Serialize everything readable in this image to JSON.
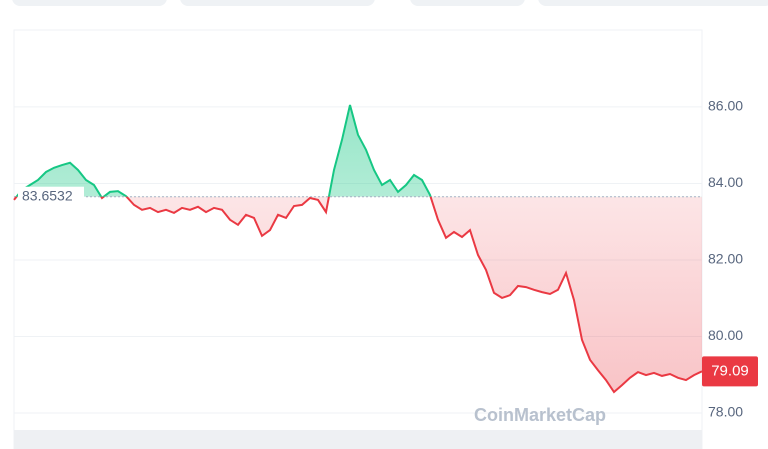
{
  "chart_data": {
    "type": "line",
    "watermark": "CoinMarketCap",
    "baseline": 83.6532,
    "color_above": "#16c784",
    "color_below": "#ea3943",
    "values": [
      83.57,
      83.83,
      83.96,
      84.09,
      84.3,
      84.41,
      84.48,
      84.54,
      84.35,
      84.09,
      83.96,
      83.62,
      83.78,
      83.8,
      83.67,
      83.44,
      83.31,
      83.36,
      83.25,
      83.31,
      83.23,
      83.36,
      83.31,
      83.39,
      83.25,
      83.36,
      83.31,
      83.05,
      82.92,
      83.18,
      83.1,
      82.63,
      82.78,
      83.18,
      83.1,
      83.41,
      83.44,
      83.62,
      83.57,
      83.25,
      84.35,
      85.14,
      86.05,
      85.27,
      84.88,
      84.35,
      83.96,
      84.09,
      83.78,
      83.96,
      84.22,
      84.09,
      83.7,
      83.05,
      82.58,
      82.73,
      82.6,
      82.78,
      82.13,
      81.74,
      81.14,
      81.01,
      81.08,
      81.32,
      81.29,
      81.22,
      81.16,
      81.11,
      81.22,
      81.66,
      80.95,
      79.91,
      79.39,
      79.12,
      78.86,
      78.55,
      78.73,
      78.92,
      79.07,
      78.99,
      79.05,
      78.97,
      79.02,
      78.92,
      78.86,
      78.99,
      79.09
    ],
    "ylim": [
      77.06,
      88.01
    ],
    "yticks": [
      {
        "value": 78,
        "label": "78.00"
      },
      {
        "value": 80,
        "label": "80.00"
      },
      {
        "value": 82,
        "label": "82.00"
      },
      {
        "value": 84,
        "label": "84.00"
      },
      {
        "value": 86,
        "label": "86.00"
      }
    ],
    "grid": true
  }
}
